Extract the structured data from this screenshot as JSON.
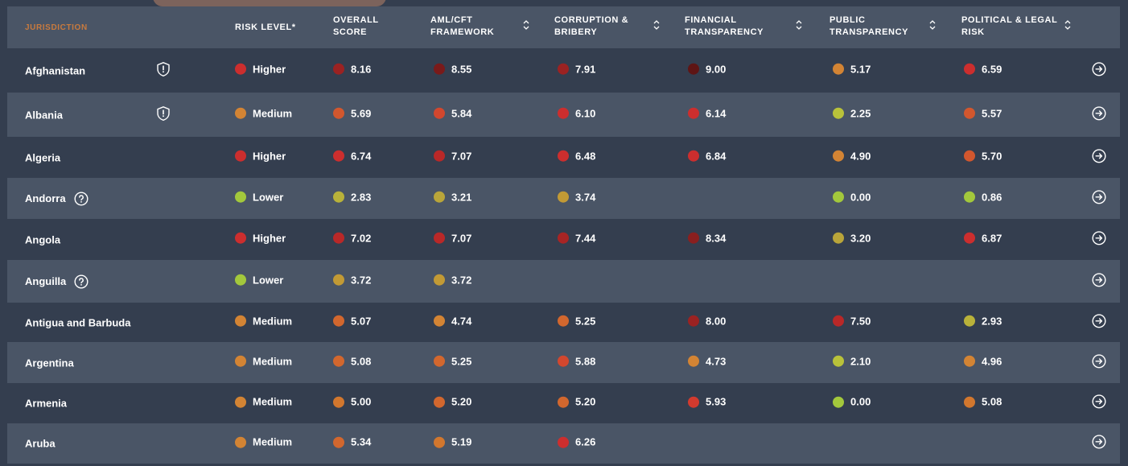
{
  "colors": {
    "very_high": "#7a1a1a",
    "high_dark": "#9b2222",
    "high": "#cc2e2e",
    "medium_high": "#d2572e",
    "medium": "#d38434",
    "medium_low": "#c29a35",
    "low_mid": "#b9b23a",
    "low": "#a3c83c",
    "header_accent": "#c87a3e"
  },
  "header": {
    "jurisdiction": "JURISDICTION",
    "risk_level": "RISK LEVEL*",
    "overall_1": "OVERALL",
    "overall_2": "SCORE",
    "aml_1": "AML/CFT",
    "aml_2": "FRAMEWORK",
    "corr_1": "CORRUPTION &",
    "corr_2": "BRIBERY",
    "fin_1": "FINANCIAL",
    "fin_2": "TRANSPARENCY",
    "pub_1": "PUBLIC",
    "pub_2": "TRANSPARENCY",
    "pol_1": "POLITICAL & LEGAL",
    "pol_2": "RISK"
  },
  "rows": [
    {
      "name": "Afghanistan",
      "icon": "shield-alert-icon",
      "risk": {
        "label": "Higher",
        "color": "#cc2e2e"
      },
      "overall": {
        "v": "8.16",
        "c": "#9b2222"
      },
      "aml": {
        "v": "8.55",
        "c": "#7a1a1a"
      },
      "corr": {
        "v": "7.91",
        "c": "#9b2222"
      },
      "fin": {
        "v": "9.00",
        "c": "#5e1515"
      },
      "pub": {
        "v": "5.17",
        "c": "#d38434"
      },
      "pol": {
        "v": "6.59",
        "c": "#cc2e2e"
      }
    },
    {
      "name": "Albania",
      "icon": "shield-alert-icon",
      "risk": {
        "label": "Medium",
        "color": "#d38434"
      },
      "overall": {
        "v": "5.69",
        "c": "#d2572e"
      },
      "aml": {
        "v": "5.84",
        "c": "#d2472e"
      },
      "corr": {
        "v": "6.10",
        "c": "#cc2e2e"
      },
      "fin": {
        "v": "6.14",
        "c": "#cc2e2e"
      },
      "pub": {
        "v": "2.25",
        "c": "#b9c23a"
      },
      "pol": {
        "v": "5.57",
        "c": "#d2572e"
      }
    },
    {
      "name": "Algeria",
      "icon": "",
      "risk": {
        "label": "Higher",
        "color": "#cc2e2e"
      },
      "overall": {
        "v": "6.74",
        "c": "#cc2e2e"
      },
      "aml": {
        "v": "7.07",
        "c": "#b92828"
      },
      "corr": {
        "v": "6.48",
        "c": "#cc2e2e"
      },
      "fin": {
        "v": "6.84",
        "c": "#cc2e2e"
      },
      "pub": {
        "v": "4.90",
        "c": "#d38434"
      },
      "pol": {
        "v": "5.70",
        "c": "#d2572e"
      }
    },
    {
      "name": "Andorra",
      "icon": "help-circle-icon",
      "risk": {
        "label": "Lower",
        "color": "#a3c83c"
      },
      "overall": {
        "v": "2.83",
        "c": "#b9b23a"
      },
      "aml": {
        "v": "3.21",
        "c": "#b9a53a"
      },
      "corr": {
        "v": "3.74",
        "c": "#c29a35"
      },
      "fin": {
        "v": "",
        "c": ""
      },
      "pub": {
        "v": "0.00",
        "c": "#a3c83c"
      },
      "pol": {
        "v": "0.86",
        "c": "#a3c83c"
      }
    },
    {
      "name": "Angola",
      "icon": "",
      "risk": {
        "label": "Higher",
        "color": "#cc2e2e"
      },
      "overall": {
        "v": "7.02",
        "c": "#b92828"
      },
      "aml": {
        "v": "7.07",
        "c": "#b92828"
      },
      "corr": {
        "v": "7.44",
        "c": "#a82424"
      },
      "fin": {
        "v": "8.34",
        "c": "#8a1f1f"
      },
      "pub": {
        "v": "3.20",
        "c": "#b9a53a"
      },
      "pol": {
        "v": "6.87",
        "c": "#cc2e2e"
      }
    },
    {
      "name": "Anguilla",
      "icon": "help-circle-icon",
      "risk": {
        "label": "Lower",
        "color": "#a3c83c"
      },
      "overall": {
        "v": "3.72",
        "c": "#c29a35"
      },
      "aml": {
        "v": "3.72",
        "c": "#c29a35"
      },
      "corr": {
        "v": "",
        "c": ""
      },
      "fin": {
        "v": "",
        "c": ""
      },
      "pub": {
        "v": "",
        "c": ""
      },
      "pol": {
        "v": "",
        "c": ""
      }
    },
    {
      "name": "Antigua and Barbuda",
      "icon": "",
      "risk": {
        "label": "Medium",
        "color": "#d38434"
      },
      "overall": {
        "v": "5.07",
        "c": "#d2672e"
      },
      "aml": {
        "v": "4.74",
        "c": "#d38434"
      },
      "corr": {
        "v": "5.25",
        "c": "#d2672e"
      },
      "fin": {
        "v": "8.00",
        "c": "#9b2222"
      },
      "pub": {
        "v": "7.50",
        "c": "#b92828"
      },
      "pol": {
        "v": "2.93",
        "c": "#b9b23a"
      }
    },
    {
      "name": "Argentina",
      "icon": "",
      "risk": {
        "label": "Medium",
        "color": "#d38434"
      },
      "overall": {
        "v": "5.08",
        "c": "#d2672e"
      },
      "aml": {
        "v": "5.25",
        "c": "#d2672e"
      },
      "corr": {
        "v": "5.88",
        "c": "#d2472e"
      },
      "fin": {
        "v": "4.73",
        "c": "#d38434"
      },
      "pub": {
        "v": "2.10",
        "c": "#b9c23a"
      },
      "pol": {
        "v": "4.96",
        "c": "#d38434"
      }
    },
    {
      "name": "Armenia",
      "icon": "",
      "risk": {
        "label": "Medium",
        "color": "#d38434"
      },
      "overall": {
        "v": "5.00",
        "c": "#d2772e"
      },
      "aml": {
        "v": "5.20",
        "c": "#d2672e"
      },
      "corr": {
        "v": "5.20",
        "c": "#d2672e"
      },
      "fin": {
        "v": "5.93",
        "c": "#d23a2e"
      },
      "pub": {
        "v": "0.00",
        "c": "#a3c83c"
      },
      "pol": {
        "v": "5.08",
        "c": "#d2772e"
      }
    },
    {
      "name": "Aruba",
      "icon": "",
      "risk": {
        "label": "Medium",
        "color": "#d38434"
      },
      "overall": {
        "v": "5.34",
        "c": "#d2672e"
      },
      "aml": {
        "v": "5.19",
        "c": "#d2772e"
      },
      "corr": {
        "v": "6.26",
        "c": "#cc2e2e"
      },
      "fin": {
        "v": "",
        "c": ""
      },
      "pub": {
        "v": "",
        "c": ""
      },
      "pol": {
        "v": "",
        "c": ""
      }
    }
  ]
}
